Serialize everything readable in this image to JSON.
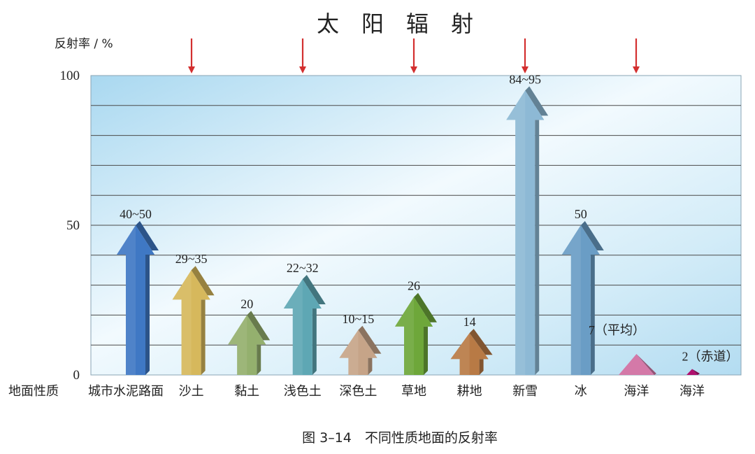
{
  "chart_data": {
    "type": "bar",
    "title": "太　阳　辐　射",
    "ylabel": "反射率 / %",
    "xlabel": "地面性质",
    "caption": "图 3–14　不同性质地面的反射率",
    "ylim": [
      0,
      100
    ],
    "yticks": [
      "0",
      "50",
      "100"
    ],
    "grid": true,
    "categories": [
      "城市水泥路面",
      "沙土",
      "黏土",
      "浅色土",
      "深色土",
      "草地",
      "耕地",
      "新雪",
      "冰",
      "海洋",
      "海洋"
    ],
    "values": [
      50,
      35,
      20,
      32,
      15,
      26,
      14,
      95,
      50,
      7,
      2
    ],
    "labels": [
      "40~50",
      "29~35",
      "20",
      "22~32",
      "10~15",
      "26",
      "14",
      "84~95",
      "50",
      "7（平均）",
      "2（赤道）"
    ],
    "colors": [
      "#3f78c4",
      "#d6b85c",
      "#94b06e",
      "#5ea7b4",
      "#c6a488",
      "#6ea73a",
      "#b87a45",
      "#8db9d5",
      "#6a9dc5",
      "#d479a8",
      "#b0106e"
    ]
  }
}
